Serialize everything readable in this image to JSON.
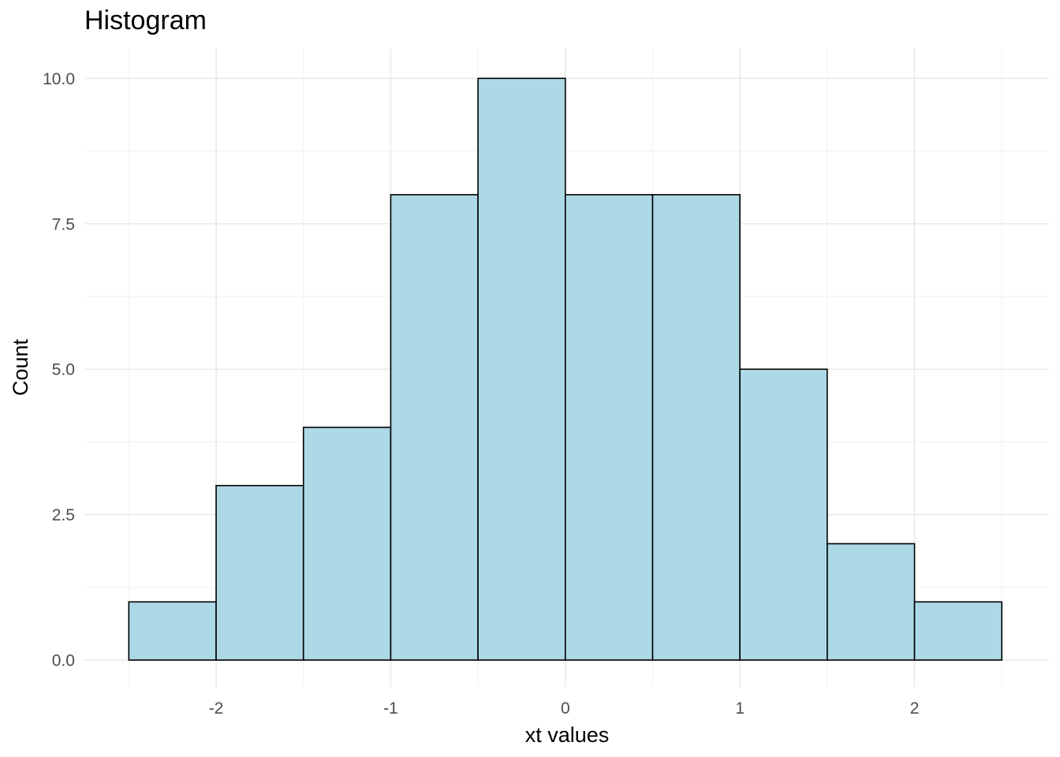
{
  "chart_data": {
    "type": "bar",
    "subtype": "histogram",
    "title": "Histogram",
    "xlabel": "xt values",
    "ylabel": "Count",
    "bin_edges": [
      -2.5,
      -2.0,
      -1.5,
      -1.0,
      -0.5,
      0.0,
      0.5,
      1.0,
      1.5,
      2.0,
      2.5
    ],
    "counts": [
      1,
      3,
      4,
      8,
      10,
      8,
      8,
      5,
      2,
      1
    ],
    "x_tick_values": [
      -2,
      -1,
      0,
      1,
      2
    ],
    "x_tick_labels": [
      "-2",
      "-1",
      "0",
      "1",
      "2"
    ],
    "y_tick_values": [
      0,
      2.5,
      5,
      7.5,
      10
    ],
    "y_tick_labels": [
      "0.0",
      "2.5",
      "5.0",
      "7.5",
      "10.0"
    ],
    "x_minor_grid_values": [
      -2.5,
      -1.5,
      -0.5,
      0.5,
      1.5,
      2.5
    ],
    "y_minor_grid_values": [
      1.25,
      3.75,
      6.25,
      8.75
    ],
    "xlim": [
      -2.75,
      2.77
    ],
    "ylim": [
      -0.46,
      10.52
    ],
    "grid": {
      "major": true,
      "minor": true
    },
    "legend": false,
    "colors": {
      "bar_fill": "#ADD8E6",
      "bar_stroke": "#000000",
      "grid_major": "#E8E8E8",
      "grid_minor": "#F1F1F1",
      "tick_label": "#4D4D4D",
      "title_text": "#000000",
      "background": "#FFFFFF"
    }
  }
}
